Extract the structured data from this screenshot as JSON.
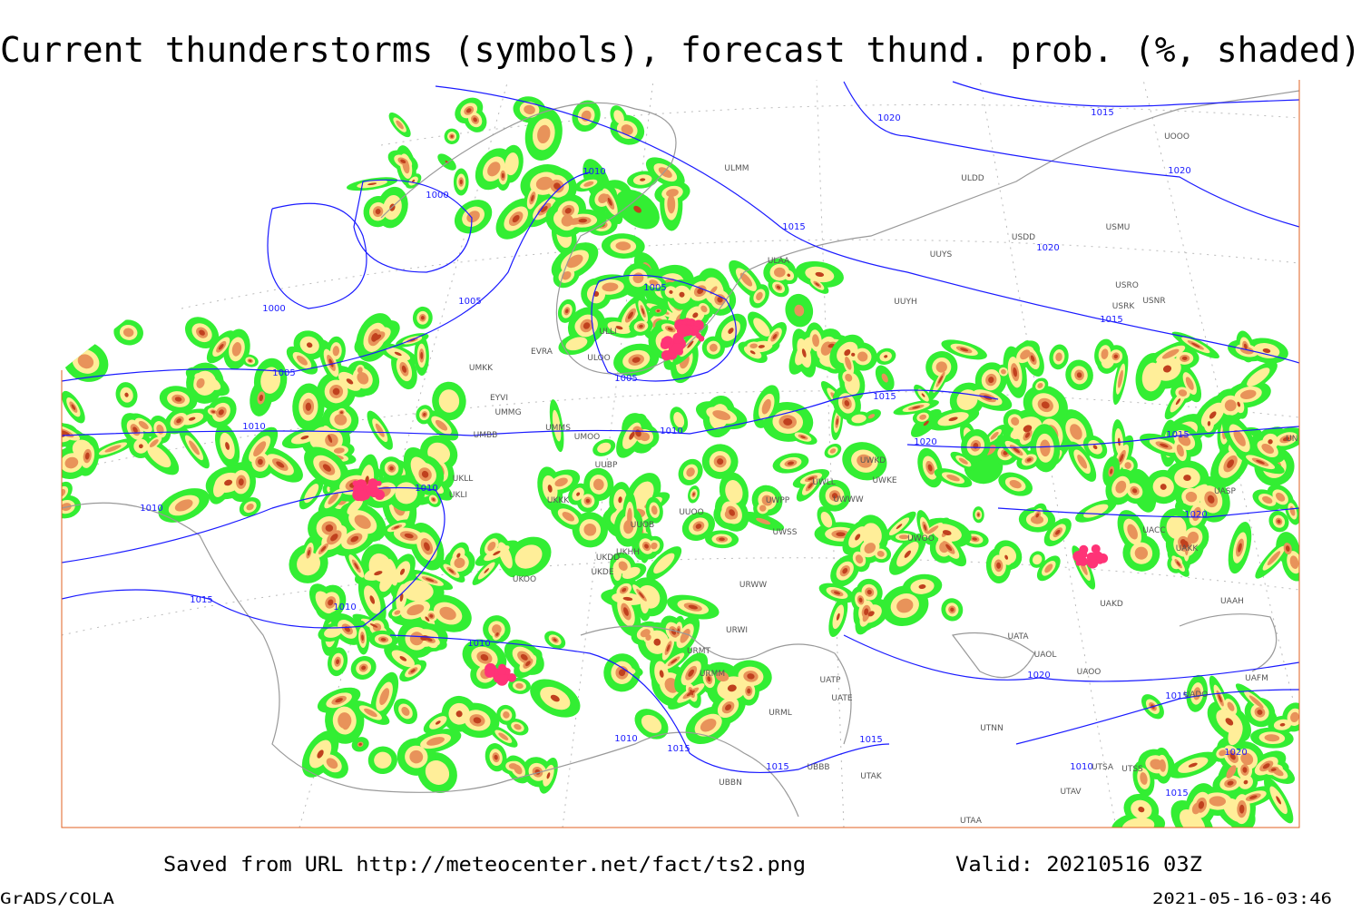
{
  "title": "Current thunderstorms (symbols), forecast thund. prob. (%, shaded)",
  "footer": {
    "source": "Saved from URL http://meteocenter.net/fact/ts2.png",
    "valid": "Valid: 20210516 03Z",
    "credit": "GrADS/COLA",
    "timestamp": "2021-05-16-03:46"
  },
  "isobar_labels": [
    "1020",
    "1015",
    "1020",
    "1010",
    "1000",
    "1015",
    "1020",
    "1005",
    "1005",
    "1000",
    "1015",
    "1005",
    "1005",
    "1015",
    "1010",
    "1010",
    "1020",
    "1015",
    "1010",
    "1010",
    "1020",
    "1015",
    "1010",
    "1010",
    "1020",
    "1015",
    "1010",
    "1015",
    "1015",
    "1015",
    "1010",
    "1020",
    "1015"
  ],
  "stations": [
    "ULMM",
    "ULDD",
    "USMU",
    "UUYS",
    "ULAA",
    "USRO",
    "USRK",
    "USNR",
    "UUYH",
    "ULLI",
    "ULOO",
    "EVRA",
    "UMKK",
    "EYVI",
    "UMMG",
    "UMMS",
    "UMOO",
    "UMBB",
    "UKLL",
    "UKLI",
    "UUBP",
    "UKKK",
    "UUOO",
    "UUOB",
    "UKHH",
    "UKDD",
    "UKDE",
    "UKOO",
    "UWPP",
    "UWSS",
    "URWW",
    "URWI",
    "URMT",
    "URMM",
    "URML",
    "UBBB",
    "UBBN",
    "UATE",
    "UATP",
    "UTAK",
    "UTNN",
    "UATA",
    "UAOL",
    "UAOO",
    "UADO",
    "UAFM",
    "UAKD",
    "UAAH",
    "UAKK",
    "UACC",
    "UASP",
    "UWOO",
    "UWKD",
    "UWKE",
    "UWWW",
    "UWLL",
    "UTSS",
    "UTSA",
    "UTAV",
    "UTAA",
    "UNBB",
    "USDD",
    "UOOO"
  ]
}
